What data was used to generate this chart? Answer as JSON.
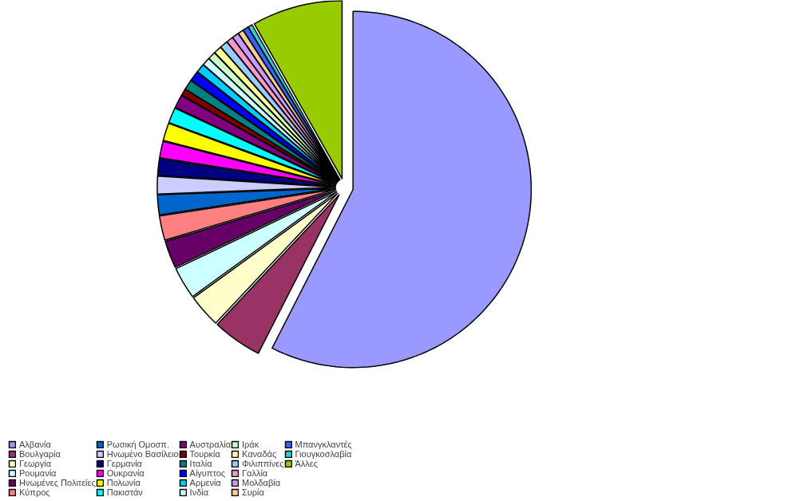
{
  "chart_data": {
    "type": "pie",
    "categories": [
      "Αλβανία",
      "Βουλγαρία",
      "Γεωργία",
      "Ρουμανία",
      "Ηνωμένες Πολιτείες",
      "Κύπρος",
      "Ρωσική Ομοσπ.",
      "Ηνωμένο Βασίλειο",
      "Γερμανία",
      "Ουκρανία",
      "Πολωνία",
      "Πακιστάν",
      "Αυστραλία",
      "Τουρκία",
      "Ιταλία",
      "Αίγυπτος",
      "Αρμενία",
      "Ινδία",
      "Ιράκ",
      "Καναδάς",
      "Φιλιππίνες",
      "Γαλλία",
      "Μολδαβία",
      "Συρία",
      "Μπανγκλαντές",
      "Γιουγκοσλαβία",
      "Άλλες"
    ],
    "values": [
      57.5,
      4.5,
      3.0,
      2.9,
      2.5,
      2.2,
      1.8,
      1.6,
      1.5,
      1.5,
      1.6,
      1.4,
      1.2,
      0.6,
      0.9,
      0.9,
      0.8,
      0.7,
      0.7,
      0.7,
      0.7,
      0.6,
      0.6,
      0.5,
      0.5,
      0.4,
      8.2
    ],
    "colors": [
      "#9999ff",
      "#993366",
      "#ffffcc",
      "#ccffff",
      "#660066",
      "#ff8080",
      "#0066cc",
      "#ccccff",
      "#000080",
      "#ff00ff",
      "#ffff00",
      "#00ffff",
      "#800080",
      "#800000",
      "#008080",
      "#0000ff",
      "#00ccff",
      "#ccffff",
      "#ccffcc",
      "#ffff99",
      "#99ccff",
      "#ff99cc",
      "#cc99ff",
      "#ffcc99",
      "#3366ff",
      "#33cccc",
      "#99cc00"
    ],
    "legend": "bottom"
  }
}
